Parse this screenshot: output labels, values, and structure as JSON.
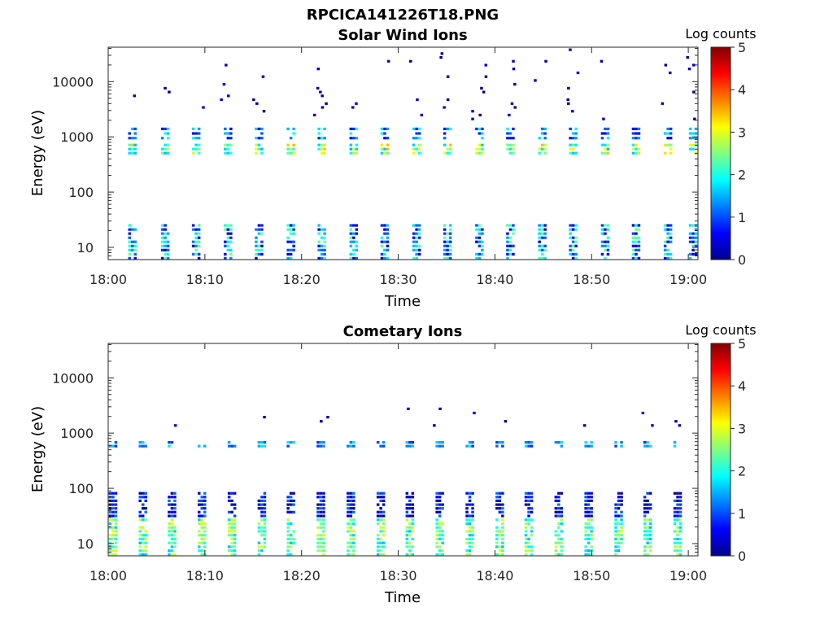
{
  "title": "RPCICA141226T18.PNG",
  "chart_data": [
    {
      "type": "heatmap",
      "title": "Solar Wind Ions",
      "xlabel": "Time",
      "ylabel": "Energy (eV)",
      "x_ticks": [
        "18:00",
        "18:10",
        "18:20",
        "18:30",
        "18:40",
        "18:50",
        "19:00"
      ],
      "x_range": [
        "18:00",
        "19:01"
      ],
      "y_scale": "log",
      "y_ticks": [
        10,
        100,
        1000,
        10000
      ],
      "y_tick_labels": [
        "10",
        "100",
        "1000",
        "10000"
      ],
      "y_range": [
        6,
        42000
      ],
      "colorbar": {
        "label": "Log counts",
        "range": [
          0,
          5
        ],
        "ticks": [
          "0",
          "1",
          "2",
          "3",
          "4",
          "5"
        ],
        "colormap": "jet"
      },
      "scan_times_min": [
        2.5,
        5.9,
        9.1,
        12.4,
        15.6,
        18.9,
        22.1,
        25.4,
        28.6,
        31.9,
        35.1,
        38.4,
        41.6,
        44.9,
        48.1,
        51.4,
        54.6,
        57.9,
        60.5
      ],
      "bands": [
        {
          "energy_low_eV": 6,
          "energy_high_eV": 28,
          "log_counts_range": [
            0.3,
            2.5
          ],
          "description": "low-energy column per scan"
        },
        {
          "energy_low_eV": 480,
          "energy_high_eV": 800,
          "log_counts_range": [
            1.5,
            3.5
          ],
          "description": "main solar wind peak per scan"
        },
        {
          "energy_low_eV": 900,
          "energy_high_eV": 1600,
          "log_counts_range": [
            0.5,
            2.0
          ],
          "description": "secondary peak per scan"
        },
        {
          "energy_low_eV": 2000,
          "energy_high_eV": 42000,
          "log_counts_range": [
            0.0,
            0.5
          ],
          "description": "sparse background"
        }
      ]
    },
    {
      "type": "heatmap",
      "title": "Cometary Ions",
      "xlabel": "Time",
      "ylabel": "Energy (eV)",
      "x_ticks": [
        "18:00",
        "18:10",
        "18:20",
        "18:30",
        "18:40",
        "18:50",
        "19:00"
      ],
      "x_range": [
        "18:00",
        "19:01"
      ],
      "y_scale": "log",
      "y_ticks": [
        10,
        100,
        1000,
        10000
      ],
      "y_tick_labels": [
        "10",
        "100",
        "1000",
        "10000"
      ],
      "y_range": [
        6,
        42000
      ],
      "colorbar": {
        "label": "Log counts",
        "range": [
          0,
          5
        ],
        "ticks": [
          "0",
          "1",
          "2",
          "3",
          "4",
          "5"
        ],
        "colormap": "jet"
      },
      "scan_times_min": [
        0.5,
        3.6,
        6.6,
        9.7,
        12.8,
        15.9,
        18.9,
        22.0,
        25.1,
        28.2,
        31.2,
        34.3,
        37.4,
        40.5,
        43.5,
        46.6,
        49.7,
        52.8,
        55.8,
        58.9
      ],
      "bands": [
        {
          "energy_low_eV": 6,
          "energy_high_eV": 30,
          "log_counts_range": [
            1.5,
            3.0
          ],
          "description": "strong low-energy column per scan"
        },
        {
          "energy_low_eV": 30,
          "energy_high_eV": 90,
          "log_counts_range": [
            0.0,
            1.2
          ],
          "description": "scattered mid-low counts"
        },
        {
          "energy_low_eV": 550,
          "energy_high_eV": 750,
          "log_counts_range": [
            0.8,
            1.8
          ],
          "description": "weak peak per scan"
        },
        {
          "energy_low_eV": 1300,
          "energy_high_eV": 3100,
          "log_counts_range": [
            0.0,
            0.6
          ],
          "description": "sparse upper counts"
        }
      ]
    }
  ]
}
